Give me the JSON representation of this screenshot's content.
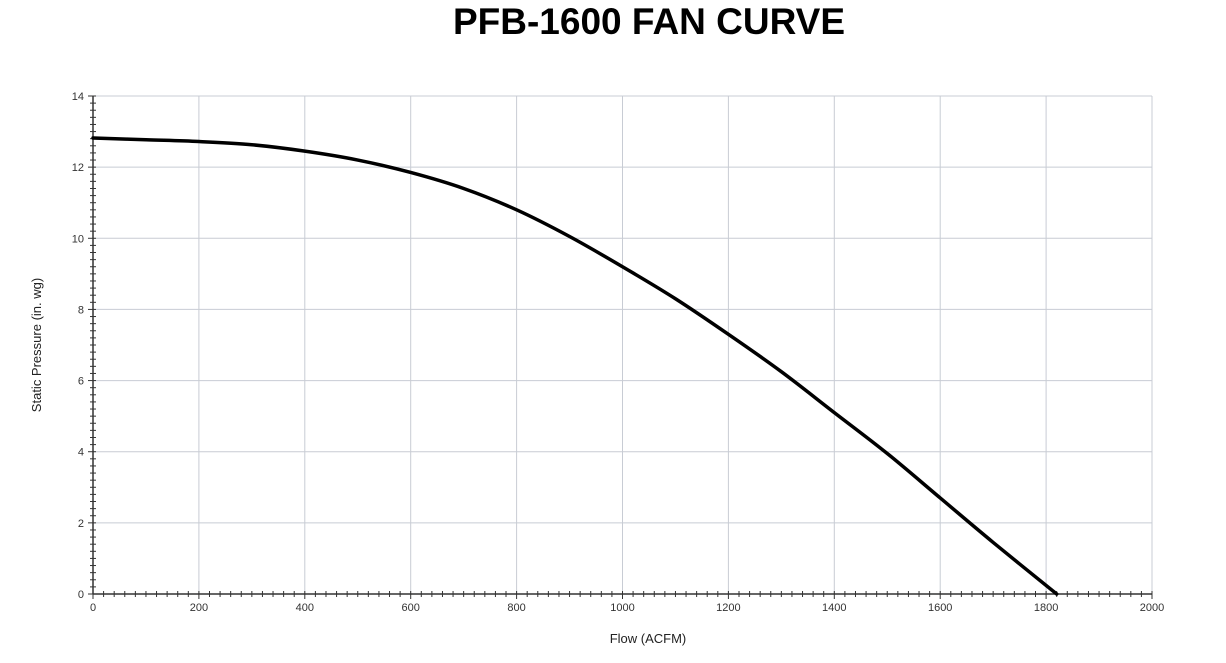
{
  "chart_data": {
    "type": "line",
    "title": "PFB-1600 FAN CURVE",
    "xlabel": "Flow (ACFM)",
    "ylabel": "Static Pressure (in. wg)",
    "xlim": [
      0,
      2000
    ],
    "ylim": [
      0,
      14
    ],
    "x_ticks": [
      0,
      200,
      400,
      600,
      800,
      1000,
      1200,
      1400,
      1600,
      1800,
      2000
    ],
    "y_ticks": [
      0,
      2,
      4,
      6,
      8,
      10,
      12,
      14
    ],
    "x_minor_step": 20,
    "y_minor_step": 0.2,
    "grid": true,
    "legend": "none",
    "series": [
      {
        "name": "Fan curve",
        "color": "#000000",
        "x": [
          0,
          100,
          200,
          300,
          400,
          500,
          600,
          700,
          800,
          900,
          1000,
          1100,
          1200,
          1300,
          1400,
          1500,
          1600,
          1700,
          1820
        ],
        "y": [
          12.82,
          12.77,
          12.72,
          12.63,
          12.45,
          12.2,
          11.85,
          11.4,
          10.8,
          10.05,
          9.2,
          8.3,
          7.3,
          6.25,
          5.1,
          3.95,
          2.7,
          1.45,
          0
        ]
      }
    ]
  }
}
